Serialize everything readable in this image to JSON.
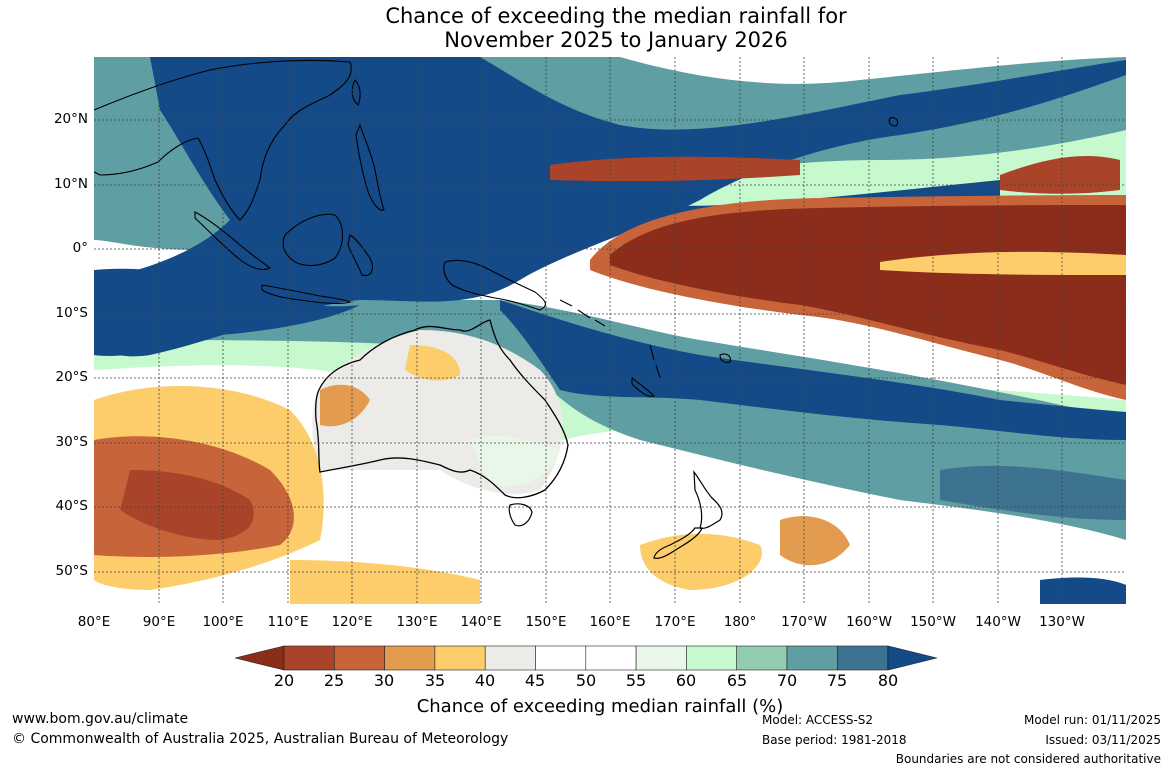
{
  "title_line1": "Chance of exceeding the median rainfall for",
  "title_line2": "November 2025 to January 2026",
  "lat_labels": [
    "20°N",
    "10°N",
    "0°",
    "10°S",
    "20°S",
    "30°S",
    "40°S",
    "50°S"
  ],
  "lon_labels": [
    "80°E",
    "90°E",
    "100°E",
    "110°E",
    "120°E",
    "130°E",
    "140°E",
    "150°E",
    "160°E",
    "170°E",
    "180°",
    "170°W",
    "160°W",
    "150°W",
    "140°W",
    "130°W"
  ],
  "colorbar": {
    "title": "Chance of exceeding median rainfall (%)",
    "ticks": [
      "20",
      "25",
      "30",
      "35",
      "40",
      "45",
      "50",
      "55",
      "60",
      "65",
      "70",
      "75",
      "80"
    ],
    "colors": [
      "#8c2d1b",
      "#a9432a",
      "#c8643a",
      "#e39b50",
      "#fdcd6b",
      "#ecebe7",
      "#ffffff",
      "#ffffff",
      "#e9f7e8",
      "#c6f9cd",
      "#93cbb1",
      "#5f9ea3",
      "#3d7390",
      "#144a87"
    ]
  },
  "footer": {
    "website": "www.bom.gov.au/climate",
    "copyright": "© Commonwealth of Australia 2025, Australian Bureau of Meteorology",
    "model": "Model: ACCESS-S2",
    "base_period": "Base period: 1981-2018",
    "model_run": "Model run: 01/11/2025",
    "issued": "Issued: 03/11/2025",
    "disclaimer": "Boundaries are not considered authoritative"
  }
}
